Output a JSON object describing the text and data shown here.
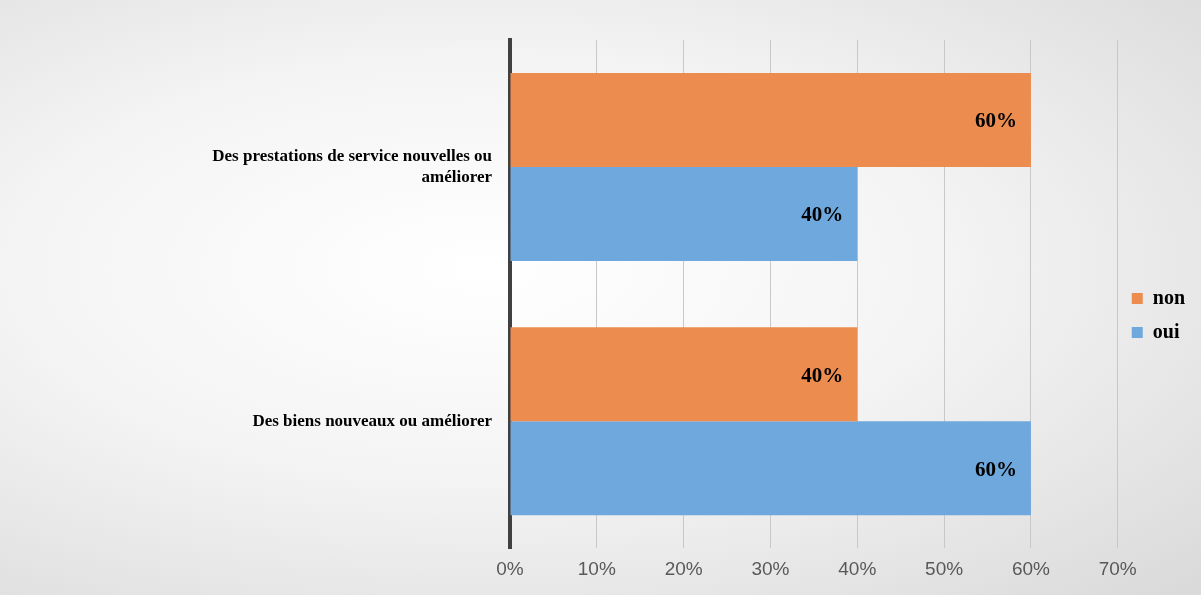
{
  "chart_data": {
    "type": "bar",
    "orientation": "horizontal",
    "categories": [
      "Des prestations de service nouvelles ou améliorer",
      "Des biens nouveaux ou améliorer"
    ],
    "series": [
      {
        "name": "non",
        "color": "#ed8c4f",
        "values": [
          60,
          40
        ],
        "value_labels": [
          "60%",
          "40%"
        ]
      },
      {
        "name": "oui",
        "color": "#6fa8dc",
        "values": [
          40,
          60
        ],
        "value_labels": [
          "40%",
          "60%"
        ]
      }
    ],
    "xlim": [
      0,
      70
    ],
    "xticks": [
      {
        "value": 0,
        "label": "0%"
      },
      {
        "value": 10,
        "label": "10%"
      },
      {
        "value": 20,
        "label": "20%"
      },
      {
        "value": 30,
        "label": "30%"
      },
      {
        "value": 40,
        "label": "40%"
      },
      {
        "value": 50,
        "label": "50%"
      },
      {
        "value": 60,
        "label": "60%"
      },
      {
        "value": 70,
        "label": "70%"
      }
    ],
    "grid": "x",
    "legend": "right"
  }
}
